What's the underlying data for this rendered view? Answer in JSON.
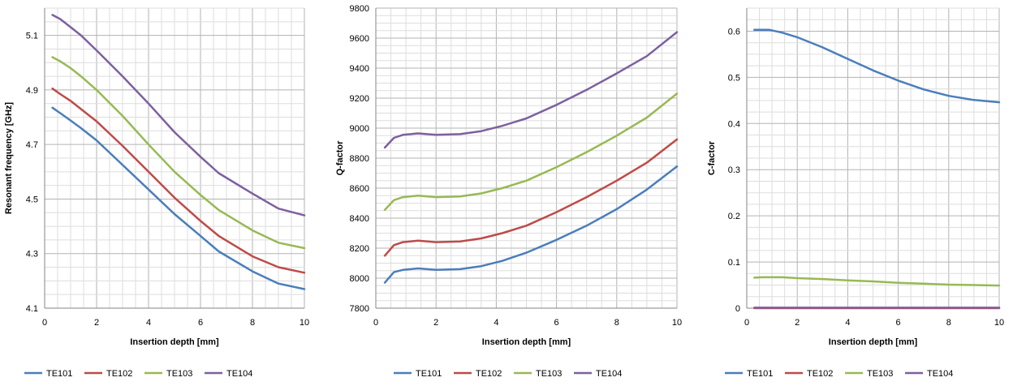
{
  "colors": {
    "TE101": "#4a7ebb",
    "TE102": "#be4b48",
    "TE103": "#98b954",
    "TE104": "#7d60a0",
    "grid_major": "#b3b3b3",
    "grid_minor": "#dddddd",
    "axis": "#868686"
  },
  "chart_data": [
    {
      "type": "line",
      "title": "",
      "xlabel": "Insertion depth [mm]",
      "ylabel": "Resonant frequency [GHz]",
      "xlim": [
        0,
        10
      ],
      "ylim": [
        4.1,
        5.2
      ],
      "xticks": [
        "0",
        "2",
        "4",
        "6",
        "8",
        "10"
      ],
      "yticks": [
        "4.1",
        "4.3",
        "4.5",
        "4.7",
        "4.9",
        "5.1"
      ],
      "grid": true,
      "legend": "bottom",
      "series": [
        {
          "name": "TE101",
          "color": "#4a7ebb",
          "x": [
            0.3,
            0.6,
            1.0,
            1.4,
            2.0,
            3.0,
            4.0,
            5.0,
            6.0,
            6.7,
            8.0,
            9.0,
            10.0
          ],
          "y": [
            4.835,
            4.815,
            4.788,
            4.76,
            4.715,
            4.625,
            4.535,
            4.445,
            4.365,
            4.308,
            4.235,
            4.19,
            4.17
          ]
        },
        {
          "name": "TE102",
          "color": "#be4b48",
          "x": [
            0.3,
            0.6,
            1.0,
            1.4,
            2.0,
            3.0,
            4.0,
            5.0,
            6.0,
            6.7,
            8.0,
            9.0,
            10.0
          ],
          "y": [
            4.905,
            4.885,
            4.86,
            4.83,
            4.785,
            4.695,
            4.6,
            4.505,
            4.42,
            4.365,
            4.29,
            4.25,
            4.23
          ]
        },
        {
          "name": "TE103",
          "color": "#98b954",
          "x": [
            0.3,
            0.6,
            1.0,
            1.4,
            2.0,
            3.0,
            4.0,
            5.0,
            6.0,
            6.7,
            8.0,
            9.0,
            10.0
          ],
          "y": [
            5.02,
            5.005,
            4.98,
            4.95,
            4.9,
            4.805,
            4.7,
            4.6,
            4.515,
            4.46,
            4.385,
            4.34,
            4.32
          ]
        },
        {
          "name": "TE104",
          "color": "#7d60a0",
          "x": [
            0.3,
            0.6,
            1.0,
            1.4,
            2.0,
            3.0,
            4.0,
            5.0,
            6.0,
            6.7,
            8.0,
            9.0,
            10.0
          ],
          "y": [
            5.175,
            5.16,
            5.13,
            5.1,
            5.045,
            4.95,
            4.85,
            4.745,
            4.655,
            4.595,
            4.52,
            4.465,
            4.44
          ]
        }
      ]
    },
    {
      "type": "line",
      "title": "",
      "xlabel": "Insertion depth [mm]",
      "ylabel": "Q-factor",
      "xlim": [
        0,
        10
      ],
      "ylim": [
        7800,
        9800
      ],
      "xticks": [
        "0",
        "2",
        "4",
        "6",
        "8",
        "10"
      ],
      "yticks": [
        "7800",
        "8000",
        "8200",
        "8400",
        "8600",
        "8800",
        "9000",
        "9200",
        "9400",
        "9600",
        "9800"
      ],
      "grid": true,
      "legend": "bottom",
      "series": [
        {
          "name": "TE101",
          "color": "#4a7ebb",
          "x": [
            0.3,
            0.6,
            0.9,
            1.4,
            2.0,
            2.8,
            3.5,
            4.2,
            5.0,
            6.0,
            7.0,
            8.0,
            9.0,
            10.0
          ],
          "y": [
            7970,
            8040,
            8055,
            8065,
            8055,
            8060,
            8080,
            8115,
            8170,
            8255,
            8350,
            8460,
            8590,
            8745
          ]
        },
        {
          "name": "TE102",
          "color": "#be4b48",
          "x": [
            0.3,
            0.6,
            0.9,
            1.4,
            2.0,
            2.8,
            3.5,
            4.2,
            5.0,
            6.0,
            7.0,
            8.0,
            9.0,
            10.0
          ],
          "y": [
            8150,
            8220,
            8240,
            8250,
            8240,
            8245,
            8265,
            8300,
            8350,
            8440,
            8540,
            8650,
            8770,
            8925
          ]
        },
        {
          "name": "TE103",
          "color": "#98b954",
          "x": [
            0.3,
            0.6,
            0.9,
            1.4,
            2.0,
            2.8,
            3.5,
            4.2,
            5.0,
            6.0,
            7.0,
            8.0,
            9.0,
            10.0
          ],
          "y": [
            8455,
            8520,
            8540,
            8550,
            8540,
            8545,
            8565,
            8600,
            8650,
            8740,
            8840,
            8950,
            9070,
            9230
          ]
        },
        {
          "name": "TE104",
          "color": "#7d60a0",
          "x": [
            0.3,
            0.6,
            0.9,
            1.4,
            2.0,
            2.8,
            3.5,
            4.2,
            5.0,
            6.0,
            7.0,
            8.0,
            9.0,
            10.0
          ],
          "y": [
            8870,
            8935,
            8955,
            8965,
            8955,
            8960,
            8980,
            9015,
            9065,
            9155,
            9255,
            9365,
            9480,
            9640
          ]
        }
      ]
    },
    {
      "type": "line",
      "title": "",
      "xlabel": "Insertion depth [mm]",
      "ylabel": "C-factor",
      "xlim": [
        0,
        10
      ],
      "ylim": [
        0,
        0.65
      ],
      "xticks": [
        "0",
        "2",
        "4",
        "6",
        "8",
        "10"
      ],
      "yticks": [
        "0",
        "0.1",
        "0.2",
        "0.3",
        "0.4",
        "0.5",
        "0.6"
      ],
      "grid": true,
      "legend": "bottom",
      "series": [
        {
          "name": "TE101",
          "color": "#4a7ebb",
          "x": [
            0.3,
            0.6,
            0.9,
            1.4,
            2.0,
            3.0,
            4.0,
            5.0,
            6.0,
            7.0,
            8.0,
            9.0,
            10.0
          ],
          "y": [
            0.603,
            0.603,
            0.603,
            0.597,
            0.587,
            0.565,
            0.54,
            0.515,
            0.493,
            0.474,
            0.46,
            0.451,
            0.446
          ]
        },
        {
          "name": "TE102",
          "color": "#be4b48",
          "x": [
            0.3,
            10.0
          ],
          "y": [
            0.0,
            0.0
          ]
        },
        {
          "name": "TE103",
          "color": "#98b954",
          "x": [
            0.3,
            0.6,
            1.4,
            2.0,
            3.0,
            4.0,
            5.0,
            6.0,
            7.0,
            8.0,
            9.0,
            10.0
          ],
          "y": [
            0.066,
            0.067,
            0.067,
            0.065,
            0.063,
            0.06,
            0.058,
            0.055,
            0.053,
            0.051,
            0.05,
            0.049
          ]
        },
        {
          "name": "TE104",
          "color": "#7d60a0",
          "x": [
            0.3,
            10.0
          ],
          "y": [
            0.001,
            0.001
          ]
        }
      ]
    }
  ]
}
